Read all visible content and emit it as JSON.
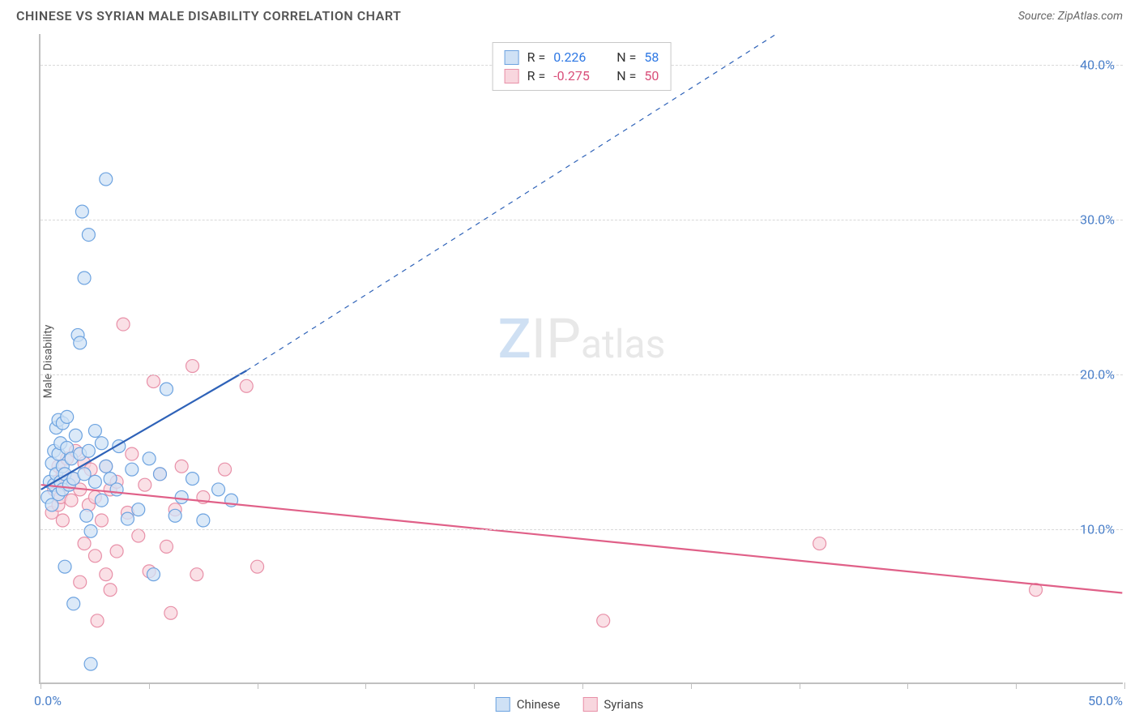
{
  "title": "CHINESE VS SYRIAN MALE DISABILITY CORRELATION CHART",
  "source": "Source: ZipAtlas.com",
  "ylabel": "Male Disability",
  "watermark": {
    "z": "Z",
    "ip": "IP",
    "atlas": "atlas"
  },
  "chart": {
    "type": "scatter-correlation",
    "xlim": [
      0,
      50
    ],
    "ylim": [
      0,
      42
    ],
    "x_ticks": [
      0,
      5,
      10,
      15,
      20,
      25,
      30,
      35,
      40,
      45,
      50
    ],
    "x_tick_labels": {
      "0": "0.0%",
      "50": "50.0%"
    },
    "y_gridlines": [
      10,
      20,
      30,
      40
    ],
    "y_tick_labels": [
      "10.0%",
      "20.0%",
      "30.0%",
      "40.0%"
    ],
    "background_color": "#ffffff",
    "grid_color": "#d8d8d8",
    "axis_color": "#c0c0c0",
    "tick_label_color": "#4a7fc9",
    "marker_radius": 8,
    "marker_stroke_width": 1.2,
    "trend_line_width": 2.2
  },
  "series": {
    "chinese": {
      "label": "Chinese",
      "R": "0.226",
      "N": "58",
      "fill": "#cfe1f5",
      "stroke": "#6da3e0",
      "line_color": "#2e62b8",
      "r_color": "#2e78e4",
      "trend": {
        "x1": 0,
        "y1": 12.5,
        "x2": 9.5,
        "y2": 20.2,
        "dash_to_x": 34,
        "dash_to_y": 42
      },
      "points": [
        [
          0.3,
          12.0
        ],
        [
          0.4,
          13.0
        ],
        [
          0.5,
          14.2
        ],
        [
          0.5,
          11.5
        ],
        [
          0.6,
          12.8
        ],
        [
          0.6,
          15.0
        ],
        [
          0.7,
          13.5
        ],
        [
          0.7,
          16.5
        ],
        [
          0.8,
          12.2
        ],
        [
          0.8,
          14.8
        ],
        [
          0.8,
          17.0
        ],
        [
          0.9,
          13.0
        ],
        [
          0.9,
          15.5
        ],
        [
          1.0,
          12.5
        ],
        [
          1.0,
          14.0
        ],
        [
          1.0,
          16.8
        ],
        [
          1.1,
          7.5
        ],
        [
          1.1,
          13.5
        ],
        [
          1.2,
          15.2
        ],
        [
          1.2,
          17.2
        ],
        [
          1.3,
          12.8
        ],
        [
          1.4,
          14.5
        ],
        [
          1.5,
          5.1
        ],
        [
          1.5,
          13.2
        ],
        [
          1.6,
          16.0
        ],
        [
          1.7,
          22.5
        ],
        [
          1.8,
          14.8
        ],
        [
          1.8,
          22.0
        ],
        [
          1.9,
          30.5
        ],
        [
          2.0,
          13.5
        ],
        [
          2.0,
          26.2
        ],
        [
          2.1,
          10.8
        ],
        [
          2.2,
          15.0
        ],
        [
          2.2,
          29.0
        ],
        [
          2.3,
          9.8
        ],
        [
          2.3,
          1.2
        ],
        [
          2.5,
          13.0
        ],
        [
          2.5,
          16.3
        ],
        [
          2.8,
          15.5
        ],
        [
          2.8,
          11.8
        ],
        [
          3.0,
          14.0
        ],
        [
          3.0,
          32.6
        ],
        [
          3.2,
          13.2
        ],
        [
          3.5,
          12.5
        ],
        [
          3.6,
          15.3
        ],
        [
          4.0,
          10.6
        ],
        [
          4.2,
          13.8
        ],
        [
          4.5,
          11.2
        ],
        [
          5.0,
          14.5
        ],
        [
          5.2,
          7.0
        ],
        [
          5.5,
          13.5
        ],
        [
          5.8,
          19.0
        ],
        [
          6.2,
          10.8
        ],
        [
          6.5,
          12.0
        ],
        [
          7.0,
          13.2
        ],
        [
          7.5,
          10.5
        ],
        [
          8.2,
          12.5
        ],
        [
          8.8,
          11.8
        ]
      ]
    },
    "syrians": {
      "label": "Syrians",
      "R": "-0.275",
      "N": "50",
      "fill": "#f8d6de",
      "stroke": "#e890a8",
      "line_color": "#e06088",
      "r_color": "#d94f7a",
      "trend": {
        "x1": 0,
        "y1": 12.8,
        "x2": 50,
        "y2": 5.8
      },
      "points": [
        [
          0.5,
          11.0
        ],
        [
          0.6,
          12.5
        ],
        [
          0.7,
          13.0
        ],
        [
          0.8,
          11.5
        ],
        [
          0.8,
          14.0
        ],
        [
          0.9,
          12.0
        ],
        [
          1.0,
          13.5
        ],
        [
          1.0,
          10.5
        ],
        [
          1.2,
          12.8
        ],
        [
          1.2,
          14.5
        ],
        [
          1.4,
          11.8
        ],
        [
          1.5,
          13.2
        ],
        [
          1.6,
          15.0
        ],
        [
          1.8,
          12.5
        ],
        [
          1.8,
          6.5
        ],
        [
          2.0,
          14.2
        ],
        [
          2.0,
          9.0
        ],
        [
          2.2,
          11.5
        ],
        [
          2.3,
          13.8
        ],
        [
          2.5,
          8.2
        ],
        [
          2.5,
          12.0
        ],
        [
          2.6,
          4.0
        ],
        [
          2.8,
          10.5
        ],
        [
          3.0,
          14.0
        ],
        [
          3.0,
          7.0
        ],
        [
          3.2,
          12.5
        ],
        [
          3.2,
          6.0
        ],
        [
          3.5,
          13.0
        ],
        [
          3.5,
          8.5
        ],
        [
          3.8,
          23.2
        ],
        [
          4.0,
          11.0
        ],
        [
          4.2,
          14.8
        ],
        [
          4.5,
          9.5
        ],
        [
          4.8,
          12.8
        ],
        [
          5.0,
          7.2
        ],
        [
          5.2,
          19.5
        ],
        [
          5.5,
          13.5
        ],
        [
          5.8,
          8.8
        ],
        [
          6.0,
          4.5
        ],
        [
          6.2,
          11.2
        ],
        [
          6.5,
          14.0
        ],
        [
          7.0,
          20.5
        ],
        [
          7.2,
          7.0
        ],
        [
          7.5,
          12.0
        ],
        [
          8.5,
          13.8
        ],
        [
          9.5,
          19.2
        ],
        [
          10.0,
          7.5
        ],
        [
          26.0,
          4.0
        ],
        [
          36.0,
          9.0
        ],
        [
          46.0,
          6.0
        ]
      ]
    }
  },
  "legend_top": {
    "r_label": "R =",
    "n_label": "N ="
  }
}
